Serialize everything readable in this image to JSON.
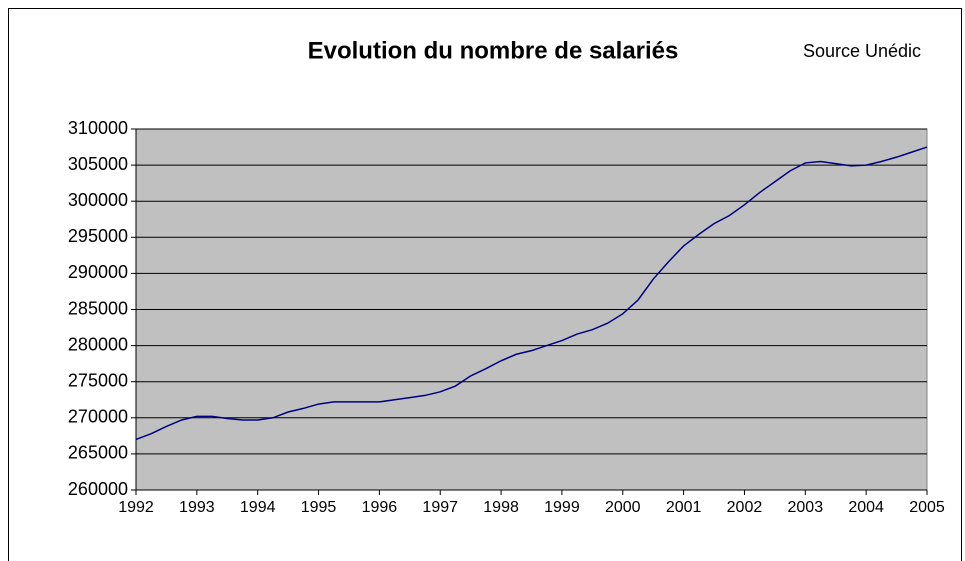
{
  "chart_data": {
    "type": "line",
    "title": "Evolution du nombre de salariés",
    "source": "Source Unédic",
    "x": [
      1992,
      1992.25,
      1992.5,
      1992.75,
      1993,
      1993.25,
      1993.5,
      1993.75,
      1994,
      1994.25,
      1994.5,
      1994.75,
      1995,
      1995.25,
      1995.5,
      1995.75,
      1996,
      1996.25,
      1996.5,
      1996.75,
      1997,
      1997.25,
      1997.5,
      1997.75,
      1998,
      1998.25,
      1998.5,
      1998.75,
      1999,
      1999.25,
      1999.5,
      1999.75,
      2000,
      2000.25,
      2000.5,
      2000.75,
      2001,
      2001.25,
      2001.5,
      2001.75,
      2002,
      2002.25,
      2002.5,
      2002.75,
      2003,
      2003.25,
      2003.5,
      2003.75,
      2004,
      2004.25,
      2004.5,
      2004.75,
      2005
    ],
    "series": [
      {
        "color": "#000080",
        "values": [
          267000,
          267800,
          268800,
          269700,
          270200,
          270200,
          269900,
          269700,
          269700,
          270000,
          270800,
          271300,
          271900,
          272200,
          272200,
          272200,
          272200,
          272500,
          272800,
          273100,
          273600,
          274400,
          275800,
          276800,
          277900,
          278800,
          279300,
          280000,
          280700,
          281600,
          282200,
          283100,
          284400,
          286300,
          289200,
          291600,
          293800,
          295400,
          296900,
          298000,
          299500,
          301200,
          302700,
          304200,
          305300,
          305500,
          305200,
          304900,
          305000,
          305500,
          306100,
          306800,
          307500
        ]
      }
    ],
    "xlim": [
      1992,
      2005
    ],
    "xticks": [
      1992,
      1993,
      1994,
      1995,
      1996,
      1997,
      1998,
      1999,
      2000,
      2001,
      2002,
      2003,
      2004,
      2005
    ],
    "ylim": [
      260000,
      310000
    ],
    "yticks": [
      260000,
      265000,
      270000,
      275000,
      280000,
      285000,
      290000,
      295000,
      300000,
      305000,
      310000
    ],
    "grid": true,
    "plot_background": "#c0c0c0"
  }
}
